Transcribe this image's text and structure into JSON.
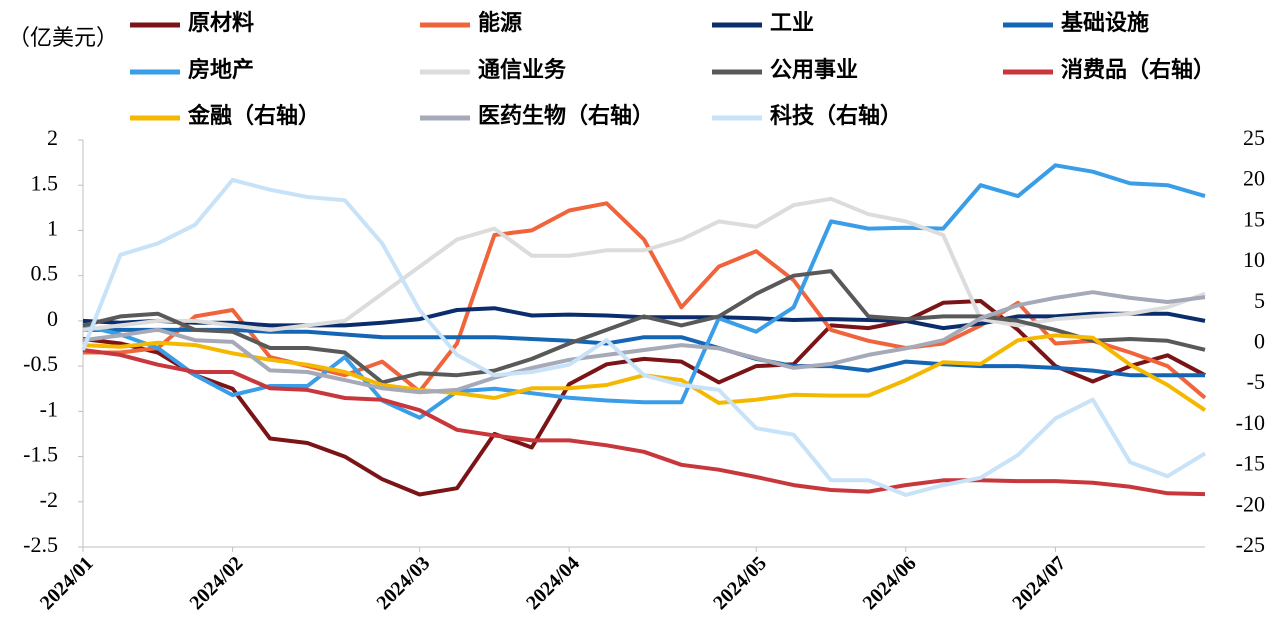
{
  "chart_data": {
    "type": "line",
    "y_label": "（亿美元）",
    "categories": [
      "2024/01",
      null,
      null,
      null,
      "2024/02",
      null,
      null,
      null,
      null,
      "2024/03",
      null,
      null,
      null,
      "2024/04",
      null,
      null,
      null,
      null,
      "2024/05",
      null,
      null,
      null,
      "2024/06",
      null,
      null,
      null,
      "2024/07",
      null,
      null,
      null,
      null
    ],
    "ylim": [
      -2.5,
      2
    ],
    "yticks": [
      -2.5,
      -2,
      -1.5,
      -1,
      -0.5,
      0,
      0.5,
      1,
      1.5,
      2
    ],
    "y2lim": [
      -25,
      25
    ],
    "y2ticks": [
      -25,
      -20,
      -15,
      -10,
      -5,
      0,
      5,
      10,
      15,
      20,
      25
    ],
    "legend": "top",
    "series": [
      {
        "name": "原材料",
        "color": "#7b1416",
        "values": [
          -0.2,
          -0.25,
          -0.35,
          -0.6,
          -0.75,
          -1.3,
          -1.35,
          -1.5,
          -1.75,
          -1.92,
          -1.85,
          -1.25,
          -1.4,
          -0.7,
          -0.48,
          -0.42,
          -0.45,
          -0.68,
          -0.5,
          -0.48,
          -0.05,
          -0.08,
          0.0,
          0.2,
          0.22,
          -0.1,
          -0.5,
          -0.67,
          -0.5,
          -0.38,
          -0.6
        ]
      },
      {
        "name": "能源",
        "color": "#f0643c",
        "values": [
          -0.35,
          -0.35,
          -0.3,
          0.05,
          0.12,
          -0.4,
          -0.5,
          -0.6,
          -0.45,
          -0.78,
          -0.25,
          0.95,
          1.0,
          1.22,
          1.3,
          0.9,
          0.15,
          0.6,
          0.77,
          0.45,
          -0.1,
          -0.22,
          -0.3,
          -0.25,
          -0.05,
          0.2,
          -0.25,
          -0.22,
          -0.35,
          -0.5,
          -0.85
        ]
      },
      {
        "name": "工业",
        "color": "#0c2d6b",
        "values": [
          0.0,
          -0.02,
          0.0,
          -0.02,
          -0.02,
          -0.05,
          -0.05,
          -0.05,
          -0.02,
          0.02,
          0.12,
          0.14,
          0.06,
          0.07,
          0.06,
          0.04,
          0.04,
          0.04,
          0.03,
          0.01,
          0.02,
          0.01,
          0.0,
          -0.08,
          -0.03,
          0.05,
          0.05,
          0.08,
          0.08,
          0.08,
          0.0
        ]
      },
      {
        "name": "基础设施",
        "color": "#1565b5",
        "values": [
          -0.1,
          -0.1,
          -0.1,
          -0.1,
          -0.1,
          -0.12,
          -0.12,
          -0.15,
          -0.18,
          -0.18,
          -0.18,
          -0.18,
          -0.2,
          -0.22,
          -0.25,
          -0.18,
          -0.18,
          -0.3,
          -0.42,
          -0.5,
          -0.5,
          -0.55,
          -0.45,
          -0.48,
          -0.5,
          -0.5,
          -0.52,
          -0.55,
          -0.6,
          -0.6,
          -0.6
        ]
      },
      {
        "name": "房地产",
        "color": "#3a9de8",
        "values": [
          -0.05,
          -0.15,
          -0.3,
          -0.6,
          -0.82,
          -0.72,
          -0.72,
          -0.4,
          -0.88,
          -1.07,
          -0.78,
          -0.75,
          -0.8,
          -0.85,
          -0.88,
          -0.9,
          -0.9,
          0.03,
          -0.12,
          0.15,
          1.1,
          1.02,
          1.03,
          1.02,
          1.5,
          1.38,
          1.72,
          1.65,
          1.52,
          1.5,
          1.38
        ]
      },
      {
        "name": "通信业务",
        "color": "#dcdcdc",
        "values": [
          -0.1,
          -0.05,
          0.0,
          0.0,
          -0.05,
          -0.1,
          -0.05,
          0.0,
          0.3,
          0.6,
          0.9,
          1.02,
          0.72,
          0.72,
          0.78,
          0.78,
          0.9,
          1.1,
          1.04,
          1.28,
          1.35,
          1.18,
          1.1,
          0.95,
          0.02,
          -0.05,
          0.02,
          0.05,
          0.08,
          0.15,
          0.3
        ]
      },
      {
        "name": "公用事业",
        "color": "#595959",
        "values": [
          -0.05,
          0.05,
          0.08,
          -0.1,
          -0.12,
          -0.3,
          -0.3,
          -0.35,
          -0.68,
          -0.58,
          -0.6,
          -0.55,
          -0.42,
          -0.25,
          -0.1,
          0.05,
          -0.05,
          0.05,
          0.3,
          0.5,
          0.55,
          0.05,
          0.02,
          0.05,
          0.05,
          0.0,
          -0.1,
          -0.22,
          -0.2,
          -0.22,
          -0.32
        ]
      },
      {
        "name": "消费品（右轴）",
        "color": "#c8373c",
        "axis": "y2",
        "values": [
          -0.8,
          -1.4,
          -2.6,
          -3.5,
          -3.5,
          -5.5,
          -5.7,
          -6.7,
          -6.9,
          -8.2,
          -10.6,
          -11.3,
          -11.9,
          -11.9,
          -12.5,
          -13.3,
          -14.9,
          -15.5,
          -16.4,
          -17.4,
          -18,
          -18.2,
          -17.4,
          -16.8,
          -16.8,
          -16.9,
          -16.9,
          -17.1,
          -17.6,
          -18.4,
          -18.5
        ]
      },
      {
        "name": "金融（右轴）",
        "color": "#f5b800",
        "axis": "y2",
        "values": [
          -0.2,
          -0.4,
          0.1,
          -0.2,
          -1.2,
          -2.0,
          -2.6,
          -3.5,
          -5.1,
          -5.7,
          -6.1,
          -6.7,
          -5.5,
          -5.5,
          -5.1,
          -3.9,
          -4.5,
          -7.3,
          -6.9,
          -6.3,
          -6.4,
          -6.4,
          -4.5,
          -2.3,
          -2.5,
          0.4,
          1.0,
          0.7,
          -2.6,
          -5.1,
          -8.2
        ]
      },
      {
        "name": "医药生物（右轴）",
        "color": "#a5a9b8",
        "axis": "y2",
        "values": [
          0.4,
          1.0,
          1.7,
          0.4,
          0.2,
          -3.3,
          -3.5,
          -4.5,
          -5.5,
          -6.0,
          -5.7,
          -4.2,
          -3.0,
          -2.0,
          -1.4,
          -0.8,
          -0.2,
          -0.6,
          -1.8,
          -3.0,
          -2.5,
          -1.4,
          -0.6,
          0.4,
          3.1,
          4.7,
          5.6,
          6.3,
          5.6,
          5.1,
          5.7
        ]
      },
      {
        "name": "科技（右轴）",
        "color": "#c8e2f8",
        "axis": "y2",
        "values": [
          -0.8,
          10.9,
          12.3,
          14.6,
          20.1,
          18.9,
          18.0,
          17.6,
          12.3,
          4.1,
          -1.4,
          -3.9,
          -3.5,
          -2.6,
          0.4,
          -3.9,
          -5.1,
          -5.7,
          -10.4,
          -11.2,
          -16.8,
          -16.8,
          -18.6,
          -17.4,
          -16.5,
          -13.7,
          -9.2,
          -6.9,
          -14.6,
          -16.3,
          -13.5
        ]
      }
    ]
  }
}
